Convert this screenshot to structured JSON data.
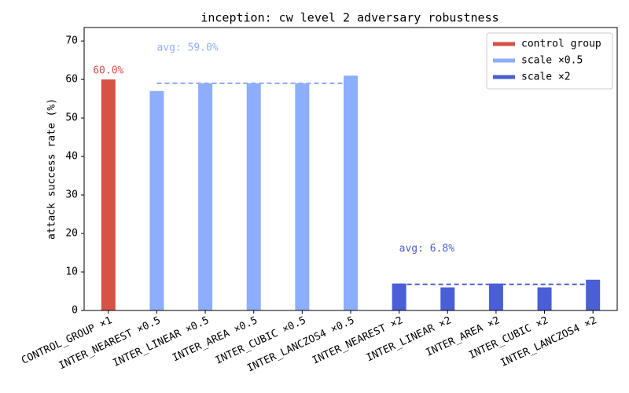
{
  "chart_data": {
    "type": "bar",
    "title": "inception: cw level 2 adversary robustness",
    "y_label": "attack success rate (%)",
    "categories": [
      "CONTROL_GROUP ×1",
      "INTER_NEAREST ×0.5",
      "INTER_LINEAR ×0.5",
      "INTER_AREA ×0.5",
      "INTER_CUBIC ×0.5",
      "INTER_LANCZOS4 ×0.5",
      "INTER_NEAREST ×2",
      "INTER_LINEAR ×2",
      "INTER_AREA ×2",
      "INTER_CUBIC ×2",
      "INTER_LANCZOS4 ×2"
    ],
    "series": [
      {
        "name": "control group",
        "color": "#d65244",
        "values": [
          60,
          null,
          null,
          null,
          null,
          null,
          null,
          null,
          null,
          null,
          null
        ],
        "value_labels": [
          "60.0%",
          null,
          null,
          null,
          null,
          null,
          null,
          null,
          null,
          null,
          null
        ]
      },
      {
        "name": "scale ×0.5",
        "color": "#8daeff",
        "values": [
          null,
          57,
          59,
          59,
          59,
          61,
          null,
          null,
          null,
          null,
          null
        ],
        "average": 59.0,
        "average_label": "avg: 59.0%"
      },
      {
        "name": "scale ×2",
        "color": "#4a5fd5",
        "values": [
          null,
          null,
          null,
          null,
          null,
          null,
          7,
          6,
          7,
          6,
          8
        ],
        "average": 6.8,
        "average_label": "avg: 6.8%"
      }
    ],
    "ylim": [
      0,
      73.5
    ],
    "yticks": [
      0,
      10,
      20,
      30,
      40,
      50,
      60,
      70
    ],
    "legend": "upper right"
  }
}
